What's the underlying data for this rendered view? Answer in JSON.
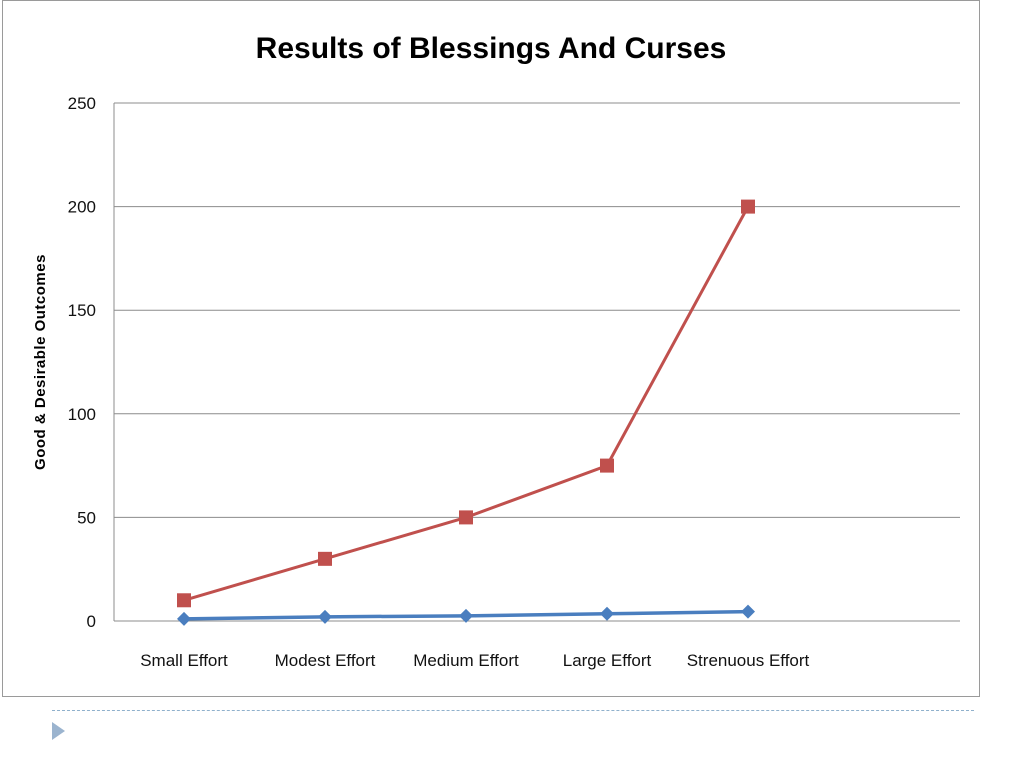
{
  "chart_data": {
    "type": "line",
    "title": "Results of Blessings And Curses",
    "ylabel": "Good & Desirable Outcomes",
    "xlabel": "",
    "categories": [
      "Small Effort",
      "Modest Effort",
      "Medium Effort",
      "Large Effort",
      "Strenuous Effort"
    ],
    "ylim": [
      0,
      250
    ],
    "yticks": [
      0,
      50,
      100,
      150,
      200,
      250
    ],
    "grid": true,
    "series": [
      {
        "values": [
          1,
          2,
          2.5,
          3.5,
          4.5
        ],
        "color": "#4a7ebf",
        "marker": "diamond"
      },
      {
        "values": [
          10,
          30,
          50,
          75,
          200
        ],
        "color": "#c0504d",
        "marker": "square"
      }
    ]
  },
  "colors": {
    "grid": "#8c8c8c",
    "frame": "#9a9a9a",
    "separator": "#8fb0cc",
    "arrow": "#9bb4cf"
  },
  "icons": {
    "slide_bullet": "triangle-right-icon"
  }
}
